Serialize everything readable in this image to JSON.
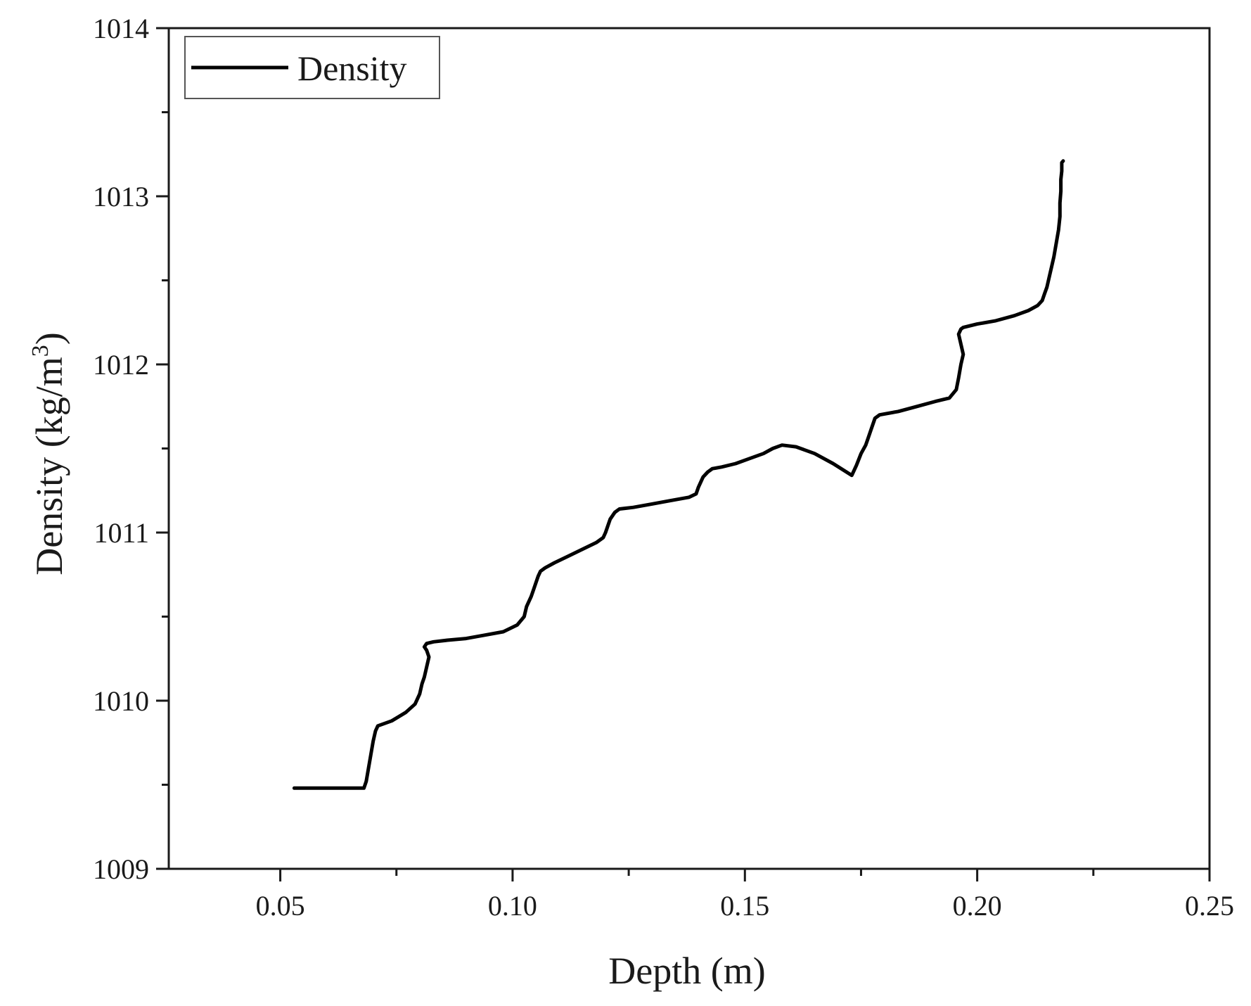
{
  "chart_data": {
    "type": "line",
    "xlabel": "Depth (m)",
    "ylabel": "Density (kg/m",
    "ylabel_superscript": "3",
    "ylabel_suffix": ")",
    "xlim": [
      0.026,
      0.25
    ],
    "ylim": [
      1009,
      1014
    ],
    "xticks": [
      0.05,
      0.1,
      0.15,
      0.2,
      0.25
    ],
    "xtick_labels": [
      "0.05",
      "0.10",
      "0.15",
      "0.20",
      "0.25"
    ],
    "x_minor_ticks": [
      0.075,
      0.125,
      0.175,
      0.225
    ],
    "yticks": [
      1009,
      1010,
      1011,
      1012,
      1013,
      1014
    ],
    "ytick_labels": [
      "1009",
      "1010",
      "1011",
      "1012",
      "1013",
      "1014"
    ],
    "y_minor_ticks": [
      1009.5,
      1010.5,
      1011.5,
      1012.5,
      1013.5
    ],
    "grid": false,
    "legend_position": "top-left",
    "line_color": "#000000",
    "series": [
      {
        "name": "Density",
        "x": [
          0.053,
          0.068,
          0.0685,
          0.069,
          0.0695,
          0.07,
          0.0705,
          0.071,
          0.074,
          0.077,
          0.079,
          0.08,
          0.0805,
          0.081,
          0.0815,
          0.082,
          0.0815,
          0.081,
          0.0815,
          0.083,
          0.086,
          0.09,
          0.094,
          0.098,
          0.101,
          0.1025,
          0.103,
          0.104,
          0.1045,
          0.105,
          0.1055,
          0.106,
          0.107,
          0.109,
          0.112,
          0.115,
          0.118,
          0.1195,
          0.12,
          0.1205,
          0.121,
          0.122,
          0.1225,
          0.123,
          0.126,
          0.13,
          0.134,
          0.138,
          0.1395,
          0.14,
          0.1405,
          0.141,
          0.142,
          0.143,
          0.145,
          0.148,
          0.151,
          0.154,
          0.156,
          0.158,
          0.161,
          0.165,
          0.169,
          0.173,
          0.174,
          0.175,
          0.176,
          0.1765,
          0.177,
          0.1775,
          0.178,
          0.179,
          0.183,
          0.187,
          0.191,
          0.194,
          0.1955,
          0.196,
          0.1965,
          0.197,
          0.1965,
          0.196,
          0.1965,
          0.197,
          0.2,
          0.204,
          0.208,
          0.211,
          0.213,
          0.214,
          0.2145,
          0.215,
          0.2155,
          0.216,
          0.2165,
          0.217,
          0.2175,
          0.2178,
          0.2178,
          0.218,
          0.218,
          0.2182,
          0.2182,
          0.2185
        ],
        "y": [
          1009.48,
          1009.48,
          1009.52,
          1009.6,
          1009.68,
          1009.76,
          1009.82,
          1009.85,
          1009.88,
          1009.93,
          1009.98,
          1010.04,
          1010.1,
          1010.14,
          1010.2,
          1010.26,
          1010.3,
          1010.32,
          1010.34,
          1010.35,
          1010.36,
          1010.37,
          1010.39,
          1010.41,
          1010.45,
          1010.5,
          1010.56,
          1010.62,
          1010.66,
          1010.7,
          1010.74,
          1010.77,
          1010.79,
          1010.82,
          1010.86,
          1010.9,
          1010.94,
          1010.97,
          1011.0,
          1011.04,
          1011.08,
          1011.12,
          1011.13,
          1011.14,
          1011.15,
          1011.17,
          1011.19,
          1011.21,
          1011.23,
          1011.27,
          1011.3,
          1011.33,
          1011.36,
          1011.38,
          1011.39,
          1011.41,
          1011.44,
          1011.47,
          1011.5,
          1011.52,
          1011.51,
          1011.47,
          1011.41,
          1011.34,
          1011.4,
          1011.47,
          1011.52,
          1011.56,
          1011.6,
          1011.64,
          1011.68,
          1011.7,
          1011.72,
          1011.75,
          1011.78,
          1011.8,
          1011.85,
          1011.92,
          1012.0,
          1012.06,
          1012.12,
          1012.18,
          1012.21,
          1012.22,
          1012.24,
          1012.26,
          1012.29,
          1012.32,
          1012.35,
          1012.38,
          1012.42,
          1012.46,
          1012.52,
          1012.58,
          1012.64,
          1012.72,
          1012.8,
          1012.88,
          1012.96,
          1013.03,
          1013.1,
          1013.15,
          1013.2,
          1013.21
        ]
      }
    ]
  }
}
